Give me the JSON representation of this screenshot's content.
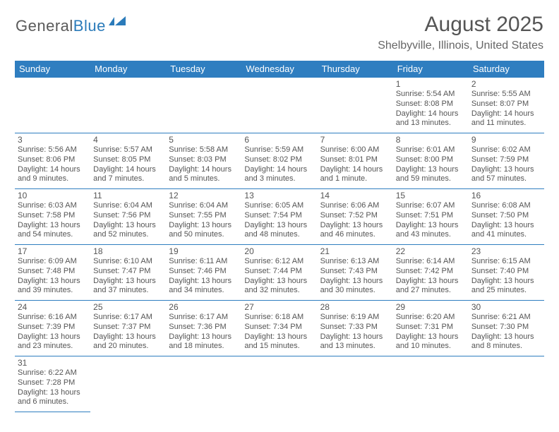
{
  "logo": {
    "text_general": "General",
    "text_blue": "Blue"
  },
  "title": "August 2025",
  "location": "Shelbyville, Illinois, United States",
  "colors": {
    "header_bg": "#2f7ec0",
    "header_text": "#ffffff",
    "border": "#2f7ec0",
    "body_text": "#555555",
    "logo_blue": "#2b7bba"
  },
  "dayHeaders": [
    "Sunday",
    "Monday",
    "Tuesday",
    "Wednesday",
    "Thursday",
    "Friday",
    "Saturday"
  ],
  "startOffset": 5,
  "days": [
    {
      "n": 1,
      "sr": "5:54 AM",
      "ss": "8:08 PM",
      "dl": "14 hours and 13 minutes."
    },
    {
      "n": 2,
      "sr": "5:55 AM",
      "ss": "8:07 PM",
      "dl": "14 hours and 11 minutes."
    },
    {
      "n": 3,
      "sr": "5:56 AM",
      "ss": "8:06 PM",
      "dl": "14 hours and 9 minutes."
    },
    {
      "n": 4,
      "sr": "5:57 AM",
      "ss": "8:05 PM",
      "dl": "14 hours and 7 minutes."
    },
    {
      "n": 5,
      "sr": "5:58 AM",
      "ss": "8:03 PM",
      "dl": "14 hours and 5 minutes."
    },
    {
      "n": 6,
      "sr": "5:59 AM",
      "ss": "8:02 PM",
      "dl": "14 hours and 3 minutes."
    },
    {
      "n": 7,
      "sr": "6:00 AM",
      "ss": "8:01 PM",
      "dl": "14 hours and 1 minute."
    },
    {
      "n": 8,
      "sr": "6:01 AM",
      "ss": "8:00 PM",
      "dl": "13 hours and 59 minutes."
    },
    {
      "n": 9,
      "sr": "6:02 AM",
      "ss": "7:59 PM",
      "dl": "13 hours and 57 minutes."
    },
    {
      "n": 10,
      "sr": "6:03 AM",
      "ss": "7:58 PM",
      "dl": "13 hours and 54 minutes."
    },
    {
      "n": 11,
      "sr": "6:04 AM",
      "ss": "7:56 PM",
      "dl": "13 hours and 52 minutes."
    },
    {
      "n": 12,
      "sr": "6:04 AM",
      "ss": "7:55 PM",
      "dl": "13 hours and 50 minutes."
    },
    {
      "n": 13,
      "sr": "6:05 AM",
      "ss": "7:54 PM",
      "dl": "13 hours and 48 minutes."
    },
    {
      "n": 14,
      "sr": "6:06 AM",
      "ss": "7:52 PM",
      "dl": "13 hours and 46 minutes."
    },
    {
      "n": 15,
      "sr": "6:07 AM",
      "ss": "7:51 PM",
      "dl": "13 hours and 43 minutes."
    },
    {
      "n": 16,
      "sr": "6:08 AM",
      "ss": "7:50 PM",
      "dl": "13 hours and 41 minutes."
    },
    {
      "n": 17,
      "sr": "6:09 AM",
      "ss": "7:48 PM",
      "dl": "13 hours and 39 minutes."
    },
    {
      "n": 18,
      "sr": "6:10 AM",
      "ss": "7:47 PM",
      "dl": "13 hours and 37 minutes."
    },
    {
      "n": 19,
      "sr": "6:11 AM",
      "ss": "7:46 PM",
      "dl": "13 hours and 34 minutes."
    },
    {
      "n": 20,
      "sr": "6:12 AM",
      "ss": "7:44 PM",
      "dl": "13 hours and 32 minutes."
    },
    {
      "n": 21,
      "sr": "6:13 AM",
      "ss": "7:43 PM",
      "dl": "13 hours and 30 minutes."
    },
    {
      "n": 22,
      "sr": "6:14 AM",
      "ss": "7:42 PM",
      "dl": "13 hours and 27 minutes."
    },
    {
      "n": 23,
      "sr": "6:15 AM",
      "ss": "7:40 PM",
      "dl": "13 hours and 25 minutes."
    },
    {
      "n": 24,
      "sr": "6:16 AM",
      "ss": "7:39 PM",
      "dl": "13 hours and 23 minutes."
    },
    {
      "n": 25,
      "sr": "6:17 AM",
      "ss": "7:37 PM",
      "dl": "13 hours and 20 minutes."
    },
    {
      "n": 26,
      "sr": "6:17 AM",
      "ss": "7:36 PM",
      "dl": "13 hours and 18 minutes."
    },
    {
      "n": 27,
      "sr": "6:18 AM",
      "ss": "7:34 PM",
      "dl": "13 hours and 15 minutes."
    },
    {
      "n": 28,
      "sr": "6:19 AM",
      "ss": "7:33 PM",
      "dl": "13 hours and 13 minutes."
    },
    {
      "n": 29,
      "sr": "6:20 AM",
      "ss": "7:31 PM",
      "dl": "13 hours and 10 minutes."
    },
    {
      "n": 30,
      "sr": "6:21 AM",
      "ss": "7:30 PM",
      "dl": "13 hours and 8 minutes."
    },
    {
      "n": 31,
      "sr": "6:22 AM",
      "ss": "7:28 PM",
      "dl": "13 hours and 6 minutes."
    }
  ],
  "labels": {
    "sunrise": "Sunrise:",
    "sunset": "Sunset:",
    "daylight": "Daylight:"
  }
}
